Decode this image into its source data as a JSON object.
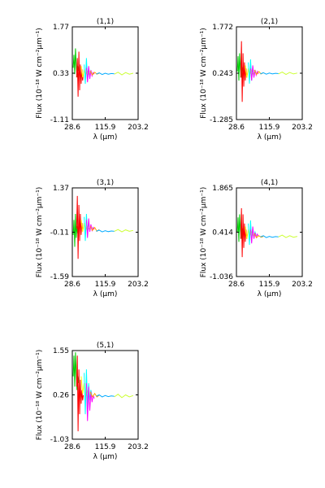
{
  "chart_data": [
    {
      "type": "line",
      "title": "(1,1)",
      "xlabel": "λ (μm)",
      "ylabel": "Flux (10⁻¹⁸ W cm⁻²μm⁻¹)",
      "xlim": [
        28.6,
        203.2
      ],
      "ylim": [
        -1.11,
        1.77
      ],
      "xticks": [
        "28.6",
        "115.9",
        "203.2"
      ],
      "yticks": [
        "-1.11",
        "0.33",
        "1.77"
      ],
      "legend": "none",
      "grid": false,
      "series": [
        {
          "color": "#00cc00",
          "x": [
            31,
            33,
            35,
            37,
            39,
            41,
            43,
            45
          ],
          "y": [
            0.5,
            0.9,
            0.3,
            1.1,
            0.6,
            0.2,
            0.55,
            0.4
          ]
        },
        {
          "color": "#ff0000",
          "x": [
            40,
            42,
            44,
            46,
            48,
            50,
            52,
            54,
            56,
            58
          ],
          "y": [
            0.2,
            0.8,
            -0.4,
            1.0,
            -0.2,
            0.6,
            0.0,
            0.45,
            0.1,
            0.3
          ]
        },
        {
          "color": "#ffff00",
          "x": [
            52,
            56,
            60,
            64,
            68,
            72,
            76
          ],
          "y": [
            0.55,
            0.2,
            0.45,
            0.28,
            0.4,
            0.3,
            0.36
          ]
        },
        {
          "color": "#00ffff",
          "x": [
            60,
            63,
            66,
            69,
            72,
            75,
            78,
            81
          ],
          "y": [
            0.6,
            0.0,
            0.8,
            0.1,
            0.5,
            0.25,
            0.4,
            0.3
          ]
        },
        {
          "color": "#ff00ff",
          "x": [
            66,
            69,
            72,
            75,
            78,
            81,
            84,
            87
          ],
          "y": [
            0.5,
            0.05,
            0.55,
            0.15,
            0.42,
            0.25,
            0.35,
            0.3
          ]
        },
        {
          "color": "#ffa500",
          "x": [
            76,
            82,
            88,
            94,
            100
          ],
          "y": [
            0.4,
            0.28,
            0.36,
            0.3,
            0.33
          ]
        },
        {
          "color": "#00aaff",
          "x": [
            92,
            100,
            108,
            116,
            124,
            132,
            140
          ],
          "y": [
            0.3,
            0.34,
            0.29,
            0.33,
            0.3,
            0.32,
            0.31
          ]
        },
        {
          "color": "#ccff33",
          "x": [
            140,
            150,
            160,
            170,
            180,
            190
          ],
          "y": [
            0.3,
            0.36,
            0.28,
            0.35,
            0.3,
            0.33
          ]
        }
      ]
    },
    {
      "type": "line",
      "title": "(2,1)",
      "xlabel": "λ (μm)",
      "ylabel": "Flux (10⁻¹⁸ W cm⁻²μm⁻¹)",
      "xlim": [
        28.6,
        203.2
      ],
      "ylim": [
        -1.285,
        1.772
      ],
      "xticks": [
        "28.6",
        "115.9",
        "203.2"
      ],
      "yticks": [
        "-1.285",
        "0.243",
        "1.772"
      ],
      "legend": "none",
      "grid": false,
      "series": [
        {
          "color": "#00cc00",
          "x": [
            31,
            33,
            35,
            37,
            39,
            41,
            43,
            45
          ],
          "y": [
            0.3,
            0.8,
            0.0,
            0.9,
            0.4,
            0.1,
            0.45,
            0.3
          ]
        },
        {
          "color": "#ff0000",
          "x": [
            40,
            42,
            44,
            46,
            48,
            50,
            52,
            54,
            56,
            58
          ],
          "y": [
            0.1,
            1.3,
            -0.7,
            0.9,
            -0.2,
            0.6,
            0.0,
            0.4,
            0.1,
            0.25
          ]
        },
        {
          "color": "#ffff00",
          "x": [
            52,
            56,
            60,
            64,
            68,
            72,
            76
          ],
          "y": [
            0.5,
            0.1,
            0.4,
            0.2,
            0.35,
            0.22,
            0.28
          ]
        },
        {
          "color": "#00ffff",
          "x": [
            60,
            63,
            66,
            69,
            72,
            75,
            78,
            81
          ],
          "y": [
            0.6,
            -0.1,
            0.7,
            0.0,
            0.45,
            0.15,
            0.35,
            0.22
          ]
        },
        {
          "color": "#ff00ff",
          "x": [
            66,
            69,
            72,
            75,
            78,
            81,
            84,
            87
          ],
          "y": [
            0.4,
            0.0,
            0.5,
            0.1,
            0.35,
            0.18,
            0.3,
            0.22
          ]
        },
        {
          "color": "#ffa500",
          "x": [
            76,
            82,
            88,
            94,
            100
          ],
          "y": [
            0.35,
            0.2,
            0.3,
            0.22,
            0.26
          ]
        },
        {
          "color": "#00aaff",
          "x": [
            92,
            100,
            108,
            116,
            124,
            132,
            140
          ],
          "y": [
            0.22,
            0.26,
            0.21,
            0.25,
            0.22,
            0.24,
            0.23
          ]
        },
        {
          "color": "#ccff33",
          "x": [
            140,
            150,
            160,
            170,
            180,
            190
          ],
          "y": [
            0.22,
            0.28,
            0.2,
            0.27,
            0.22,
            0.25
          ]
        }
      ]
    },
    {
      "type": "line",
      "title": "(3,1)",
      "xlabel": "λ (μm)",
      "ylabel": "Flux (10⁻¹⁸ W cm⁻²μm⁻¹)",
      "xlim": [
        28.6,
        203.2
      ],
      "ylim": [
        -1.59,
        1.37
      ],
      "xticks": [
        "28.6",
        "115.9",
        "203.2"
      ],
      "yticks": [
        "-1.59",
        "-0.11",
        "1.37"
      ],
      "legend": "none",
      "grid": false,
      "series": [
        {
          "color": "#00cc00",
          "x": [
            31,
            33,
            35,
            37,
            39,
            41,
            43,
            45
          ],
          "y": [
            -0.2,
            0.3,
            -0.6,
            0.5,
            -0.3,
            0.1,
            -0.15,
            0.0
          ]
        },
        {
          "color": "#ff0000",
          "x": [
            40,
            42,
            44,
            46,
            48,
            50,
            52,
            54,
            56,
            58
          ],
          "y": [
            0.0,
            1.1,
            -1.0,
            0.8,
            -0.4,
            0.5,
            -0.2,
            0.2,
            -0.05,
            0.05
          ]
        },
        {
          "color": "#ffff00",
          "x": [
            52,
            56,
            60,
            64,
            68,
            72,
            76
          ],
          "y": [
            0.3,
            -0.1,
            0.2,
            -0.05,
            0.1,
            0.0,
            0.05
          ]
        },
        {
          "color": "#00ffff",
          "x": [
            60,
            63,
            66,
            69,
            72,
            75,
            78,
            81
          ],
          "y": [
            0.4,
            -0.4,
            0.5,
            -0.2,
            0.25,
            -0.05,
            0.1,
            0.0
          ]
        },
        {
          "color": "#ff00ff",
          "x": [
            66,
            69,
            72,
            75,
            78,
            81,
            84,
            87
          ],
          "y": [
            0.3,
            -0.3,
            0.35,
            -0.1,
            0.15,
            -0.05,
            0.05,
            -0.02
          ]
        },
        {
          "color": "#ffa500",
          "x": [
            76,
            82,
            88,
            94,
            100
          ],
          "y": [
            0.1,
            -0.05,
            0.05,
            -0.08,
            -0.02
          ]
        },
        {
          "color": "#00aaff",
          "x": [
            92,
            100,
            108,
            116,
            124,
            132,
            140
          ],
          "y": [
            -0.08,
            -0.04,
            -0.1,
            -0.06,
            -0.09,
            -0.07,
            -0.08
          ]
        },
        {
          "color": "#ccff33",
          "x": [
            140,
            150,
            160,
            170,
            180,
            190
          ],
          "y": [
            -0.08,
            -0.02,
            -0.1,
            -0.03,
            -0.08,
            -0.05
          ]
        }
      ]
    },
    {
      "type": "line",
      "title": "(4,1)",
      "xlabel": "λ (μm)",
      "ylabel": "Flux (10⁻¹⁸ W cm⁻²μm⁻¹)",
      "xlim": [
        28.6,
        203.2
      ],
      "ylim": [
        -1.036,
        1.865
      ],
      "xticks": [
        "28.6",
        "115.9",
        "203.2"
      ],
      "yticks": [
        "-1.036",
        "0.414",
        "1.865"
      ],
      "legend": "none",
      "grid": false,
      "series": [
        {
          "color": "#00cc00",
          "x": [
            31,
            33,
            35,
            37,
            39,
            41,
            43,
            45
          ],
          "y": [
            0.4,
            0.9,
            0.1,
            1.0,
            0.5,
            0.2,
            0.55,
            0.4
          ]
        },
        {
          "color": "#ff0000",
          "x": [
            40,
            42,
            44,
            46,
            48,
            50,
            52,
            54,
            56,
            58
          ],
          "y": [
            0.2,
            1.2,
            -0.4,
            1.0,
            -0.1,
            0.7,
            0.1,
            0.5,
            0.2,
            0.35
          ]
        },
        {
          "color": "#ffff00",
          "x": [
            52,
            56,
            60,
            64,
            68,
            72,
            76
          ],
          "y": [
            0.6,
            0.2,
            0.5,
            0.3,
            0.45,
            0.32,
            0.38
          ]
        },
        {
          "color": "#00ffff",
          "x": [
            60,
            63,
            66,
            69,
            72,
            75,
            78,
            81
          ],
          "y": [
            0.7,
            0.0,
            0.8,
            0.1,
            0.55,
            0.25,
            0.42,
            0.3
          ]
        },
        {
          "color": "#ff00ff",
          "x": [
            66,
            69,
            72,
            75,
            78,
            81,
            84,
            87
          ],
          "y": [
            0.5,
            0.05,
            0.6,
            0.2,
            0.4,
            0.25,
            0.35,
            0.28
          ]
        },
        {
          "color": "#ffa500",
          "x": [
            76,
            82,
            88,
            94,
            100
          ],
          "y": [
            0.36,
            0.24,
            0.3,
            0.25,
            0.28
          ]
        },
        {
          "color": "#00aaff",
          "x": [
            92,
            100,
            108,
            116,
            124,
            132,
            140
          ],
          "y": [
            0.26,
            0.3,
            0.24,
            0.28,
            0.25,
            0.27,
            0.26
          ]
        },
        {
          "color": "#ccff33",
          "x": [
            140,
            150,
            160,
            170,
            180,
            190
          ],
          "y": [
            0.26,
            0.32,
            0.24,
            0.3,
            0.25,
            0.28
          ]
        }
      ]
    },
    {
      "type": "line",
      "title": "(5,1)",
      "xlabel": "λ (μm)",
      "ylabel": "Flux (10⁻¹⁸ W cm⁻²μm⁻¹)",
      "xlim": [
        28.6,
        203.2
      ],
      "ylim": [
        -1.03,
        1.55
      ],
      "xticks": [
        "28.6",
        "115.9",
        "203.2"
      ],
      "yticks": [
        "-1.03",
        "0.26",
        "1.55"
      ],
      "legend": "none",
      "grid": false,
      "series": [
        {
          "color": "#00cc00",
          "x": [
            31,
            33,
            35,
            37,
            39,
            41,
            43,
            45
          ],
          "y": [
            0.8,
            1.4,
            0.5,
            1.5,
            0.9,
            0.4,
            0.8,
            0.6
          ]
        },
        {
          "color": "#ff0000",
          "x": [
            40,
            42,
            44,
            46,
            48,
            50,
            52,
            54,
            56,
            58
          ],
          "y": [
            0.5,
            1.4,
            -0.8,
            1.0,
            -0.3,
            0.7,
            0.0,
            0.4,
            0.1,
            0.25
          ]
        },
        {
          "color": "#ffff00",
          "x": [
            52,
            56,
            60,
            64,
            68,
            72,
            76
          ],
          "y": [
            0.8,
            0.3,
            0.6,
            0.2,
            0.4,
            0.25,
            0.3
          ]
        },
        {
          "color": "#00ffff",
          "x": [
            60,
            63,
            66,
            69,
            72,
            75,
            78,
            81
          ],
          "y": [
            0.9,
            -0.3,
            1.0,
            -0.1,
            0.6,
            0.1,
            0.4,
            0.2
          ]
        },
        {
          "color": "#ff00ff",
          "x": [
            66,
            69,
            72,
            75,
            78,
            81,
            84,
            87
          ],
          "y": [
            0.6,
            -0.5,
            0.5,
            -0.2,
            0.35,
            0.05,
            0.25,
            0.15
          ]
        },
        {
          "color": "#ffa500",
          "x": [
            76,
            82,
            88,
            94,
            100
          ],
          "y": [
            0.35,
            0.2,
            0.3,
            0.2,
            0.25
          ]
        },
        {
          "color": "#00aaff",
          "x": [
            92,
            100,
            108,
            116,
            124,
            132,
            140
          ],
          "y": [
            0.22,
            0.26,
            0.2,
            0.24,
            0.21,
            0.23,
            0.22
          ]
        },
        {
          "color": "#ccff33",
          "x": [
            140,
            150,
            160,
            170,
            180,
            190
          ],
          "y": [
            0.2,
            0.28,
            0.18,
            0.26,
            0.2,
            0.24
          ]
        }
      ]
    }
  ]
}
